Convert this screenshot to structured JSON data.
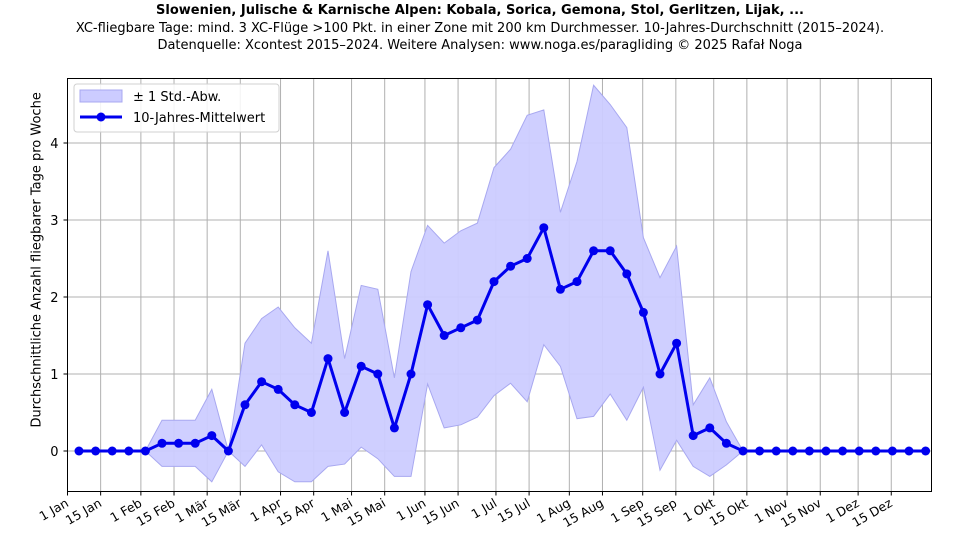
{
  "header": {
    "title": "Slowenien, Julische & Karnische Alpen: Kobala, Sorica, Gemona, Stol, Gerlitzen, Lijak, ...",
    "subtitle": "XC-fliegbare Tage: mind. 3 XC-Flüge >100 Pkt. in einer Zone mit 200 km Durchmesser. 10-Jahres-Durchschnitt (2015–2024).",
    "source": "Datenquelle: Xcontest 2015–2024. Weitere Analysen: www.noga.es/paragliding © 2025 Rafał Noga"
  },
  "colors": {
    "mean_line": "#0000ee",
    "band_fill": "#ccccff",
    "band_edge": "#a8a8f0",
    "grid": "#b0b0b0"
  },
  "chart_data": {
    "type": "line",
    "title": "Slowenien, Julische & Karnische Alpen: Kobala, Sorica, Gemona, Stol, Gerlitzen, Lijak, ...",
    "xlabel": "",
    "ylabel": "Durchschnittliche Anzahl fliegbarer Tage pro Woche",
    "ylim": [
      -0.52,
      4.85
    ],
    "yticks": [
      0,
      1,
      2,
      3,
      4
    ],
    "xticks": [
      "1 Jan",
      "15 Jan",
      "1 Feb",
      "15 Feb",
      "1 Mär",
      "15 Mär",
      "1 Apr",
      "15 Apr",
      "1 Mai",
      "15 Mai",
      "1 Jun",
      "15 Jun",
      "1 Jul",
      "15 Jul",
      "1 Aug",
      "15 Aug",
      "1 Sep",
      "15 Sep",
      "1 Okt",
      "15 Okt",
      "1 Nov",
      "15 Nov",
      "1 Dez",
      "15 Dez"
    ],
    "xtick_days": [
      0,
      14,
      31,
      45,
      59,
      73,
      90,
      104,
      120,
      134,
      151,
      165,
      181,
      195,
      212,
      226,
      243,
      257,
      273,
      287,
      304,
      318,
      334,
      348
    ],
    "grid": true,
    "legend_position": "upper left",
    "legend": [
      "± 1 Std.-Abw.",
      "10-Jahres-Mittelwert"
    ],
    "week": [
      1,
      2,
      3,
      4,
      5,
      6,
      7,
      8,
      9,
      10,
      11,
      12,
      13,
      14,
      15,
      16,
      17,
      18,
      19,
      20,
      21,
      22,
      23,
      24,
      25,
      26,
      27,
      28,
      29,
      30,
      31,
      32,
      33,
      34,
      35,
      36,
      37,
      38,
      39,
      40,
      41,
      42,
      43,
      44,
      45,
      46,
      47,
      48,
      49,
      50,
      51,
      52
    ],
    "series": [
      {
        "name": "10-Jahres-Mittelwert",
        "values": [
          0,
          0,
          0,
          0,
          0,
          0.1,
          0.1,
          0.1,
          0.2,
          0,
          0.6,
          0.9,
          0.8,
          0.6,
          0.5,
          1.2,
          0.5,
          1.1,
          1.0,
          0.3,
          1.0,
          1.9,
          1.5,
          1.6,
          1.7,
          2.2,
          2.4,
          2.5,
          2.9,
          2.1,
          2.2,
          2.6,
          2.6,
          2.3,
          1.8,
          1.0,
          1.4,
          0.2,
          0.3,
          0.1,
          0,
          0,
          0,
          0,
          0,
          0,
          0,
          0,
          0,
          0,
          0,
          0
        ]
      },
      {
        "name": "± 1 Std.-Abw. (obere Grenze)",
        "values": [
          0,
          0,
          0,
          0,
          0,
          0.4,
          0.4,
          0.4,
          0.8,
          0,
          1.4,
          1.72,
          1.87,
          1.6,
          1.4,
          2.6,
          1.2,
          2.15,
          2.1,
          0.95,
          2.33,
          2.93,
          2.7,
          2.86,
          2.96,
          3.68,
          3.92,
          4.36,
          4.43,
          3.1,
          3.76,
          4.75,
          4.5,
          4.2,
          2.77,
          2.25,
          2.66,
          0.6,
          0.95,
          0.38,
          0,
          0,
          0,
          0,
          0,
          0,
          0,
          0,
          0,
          0,
          0,
          0
        ]
      },
      {
        "name": "± 1 Std.-Abw. (untere Grenze)",
        "values": [
          0,
          0,
          0,
          0,
          0,
          -0.2,
          -0.2,
          -0.2,
          -0.4,
          0,
          -0.2,
          0.08,
          -0.27,
          -0.4,
          -0.4,
          -0.2,
          -0.17,
          0.05,
          -0.1,
          -0.33,
          -0.33,
          0.87,
          0.3,
          0.34,
          0.44,
          0.72,
          0.88,
          0.64,
          1.38,
          1.1,
          0.42,
          0.45,
          0.74,
          0.4,
          0.83,
          -0.25,
          0.14,
          -0.2,
          -0.33,
          -0.18,
          0,
          0,
          0,
          0,
          0,
          0,
          0,
          0,
          0,
          0,
          0,
          0
        ]
      }
    ]
  }
}
